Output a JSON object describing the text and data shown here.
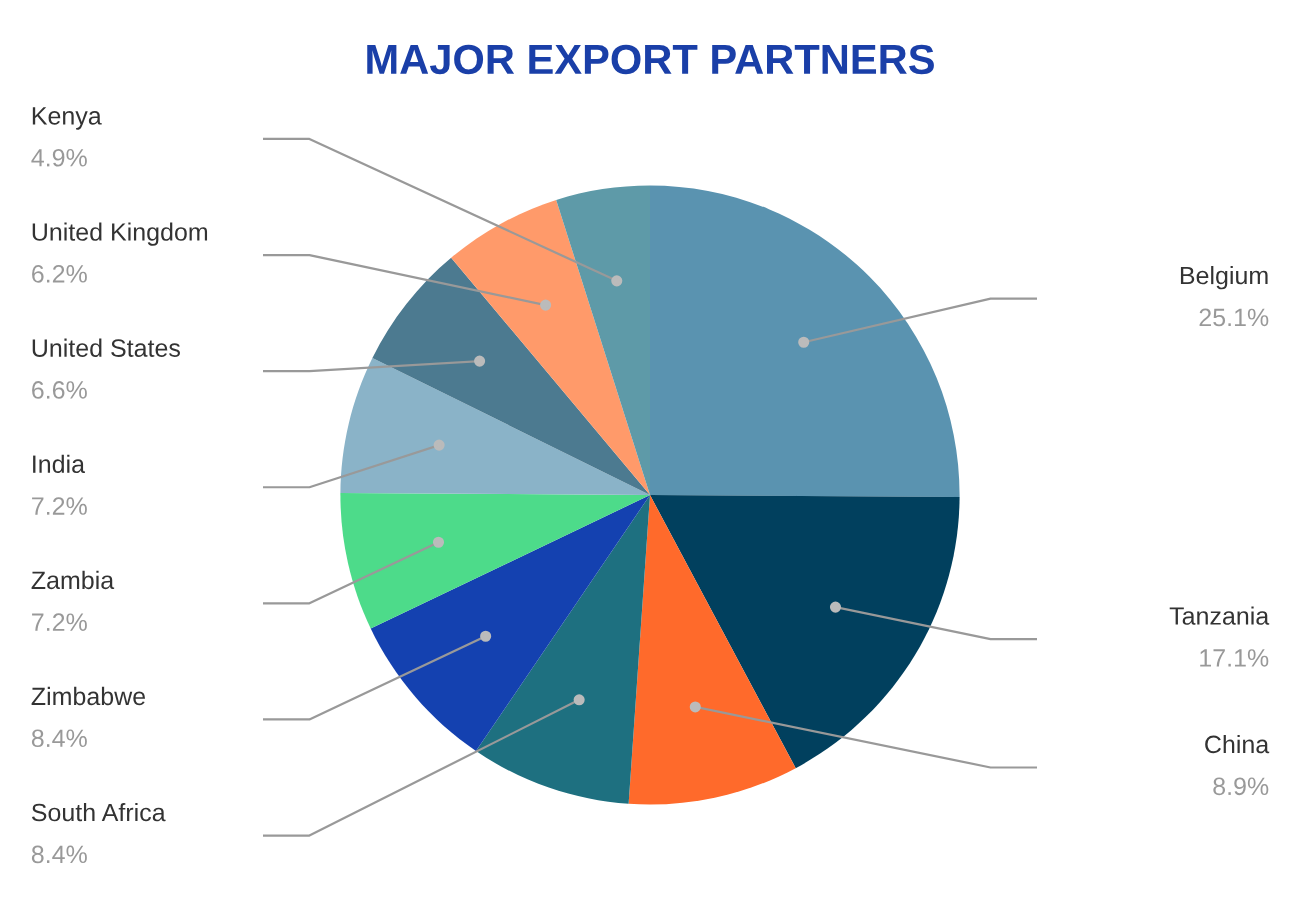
{
  "chart_data": {
    "type": "pie",
    "title": "MAJOR EXPORT PARTNERS",
    "categories": [
      "Belgium",
      "Tanzania",
      "China",
      "South Africa",
      "Zimbabwe",
      "Zambia",
      "India",
      "United States",
      "United Kingdom",
      "Kenya"
    ],
    "values": [
      25.1,
      17.1,
      8.9,
      8.4,
      8.4,
      7.2,
      7.2,
      6.6,
      6.2,
      4.9
    ],
    "value_labels": [
      "25.1%",
      "17.1%",
      "8.9%",
      "8.4%",
      "8.4%",
      "7.2%",
      "7.2%",
      "6.6%",
      "6.2%",
      "4.9%"
    ],
    "colors": [
      "#5a93b0",
      "#01405e",
      "#ff6a2b",
      "#1e7080",
      "#1441b0",
      "#4ddb8a",
      "#8ab3c8",
      "#4c7a90",
      "#ff9a6a",
      "#5e9aa8"
    ],
    "legend": false
  }
}
